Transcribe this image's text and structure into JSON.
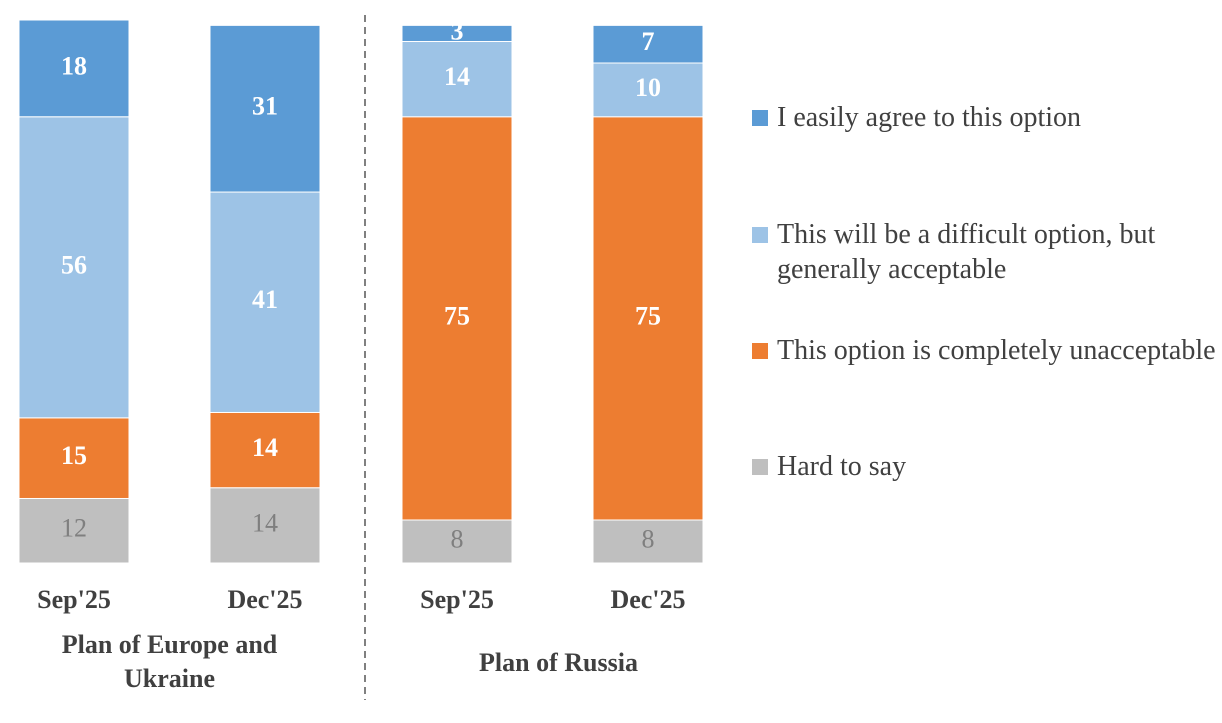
{
  "chart_data": {
    "type": "stacked-bar",
    "categories": [
      "Sep'25",
      "Dec'25",
      "Sep'25",
      "Dec'25"
    ],
    "groups": [
      "Plan of Europe and Ukraine",
      "Plan of Russia"
    ],
    "series": [
      {
        "name": "I easily agree to this option",
        "color": "#5b9bd5",
        "label_color": "#ffffff",
        "values": [
          18,
          31,
          3,
          7
        ]
      },
      {
        "name": "This will be a difficult option, but generally acceptable",
        "color": "#9dc3e6",
        "label_color": "#ffffff",
        "values": [
          56,
          41,
          14,
          10
        ]
      },
      {
        "name": "This option is completely unacceptable",
        "color": "#ed7d31",
        "label_color": "#ffffff",
        "values": [
          15,
          14,
          75,
          75
        ]
      },
      {
        "name": "Hard to say",
        "color": "#bfbfbf",
        "label_color": "#7f7f7f",
        "values": [
          12,
          14,
          8,
          8
        ]
      }
    ]
  }
}
